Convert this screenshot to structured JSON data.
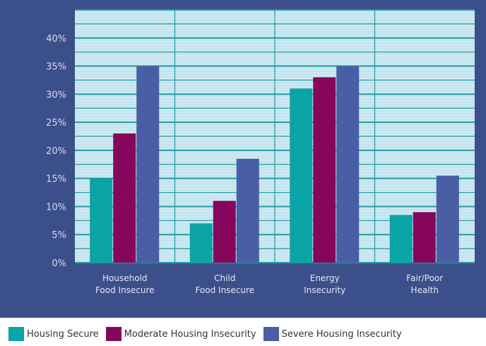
{
  "colors": {
    "frame": "#3b4f8a",
    "plot_bg": "#cde9f2",
    "grid": "#1f9aa3",
    "secure": "#0aa3a6",
    "moderate": "#86065c",
    "severe": "#4a5ea6"
  },
  "chart_data": {
    "type": "bar",
    "categories": [
      [
        "Household",
        "Food Insecure"
      ],
      [
        "Child",
        "Food Insecure"
      ],
      [
        "Energy",
        "Insecurity"
      ],
      [
        "Fair/Poor",
        "Health"
      ]
    ],
    "series": [
      {
        "name": "Housing Secure",
        "color_key": "secure",
        "values": [
          15,
          7,
          31,
          8.5
        ]
      },
      {
        "name": "Moderate Housing Insecurity",
        "color_key": "moderate",
        "values": [
          23,
          11,
          33,
          9
        ]
      },
      {
        "name": "Severe Housing Insecurity",
        "color_key": "severe",
        "values": [
          35,
          18.5,
          35,
          15.5
        ]
      }
    ],
    "y_ticks": [
      "0%",
      "5%",
      "10%",
      "15%",
      "20%",
      "25%",
      "30%",
      "35%",
      "40%"
    ],
    "ylim": [
      0,
      45
    ],
    "grid": true,
    "legend_position": "bottom"
  }
}
